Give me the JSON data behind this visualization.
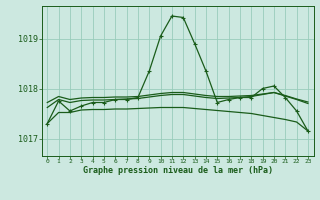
{
  "background_color": "#cce8e0",
  "grid_color": "#99ccbb",
  "line_color": "#1a5c1a",
  "title": "Graphe pression niveau de la mer (hPa)",
  "xlabel_hours": [
    0,
    1,
    2,
    3,
    4,
    5,
    6,
    7,
    8,
    9,
    10,
    11,
    12,
    13,
    14,
    15,
    16,
    17,
    18,
    19,
    20,
    21,
    22,
    23
  ],
  "yticks": [
    1017,
    1018,
    1019
  ],
  "ylim": [
    1016.65,
    1019.65
  ],
  "xlim": [
    -0.5,
    23.5
  ],
  "lines": [
    {
      "x": [
        0,
        1,
        2,
        3,
        4,
        5,
        6,
        7,
        8,
        9,
        10,
        11,
        12,
        13,
        14,
        15,
        16,
        17,
        18,
        19,
        20,
        21,
        22,
        23
      ],
      "y": [
        1017.3,
        1017.75,
        1017.55,
        1017.65,
        1017.72,
        1017.72,
        1017.78,
        1017.78,
        1017.82,
        1018.35,
        1019.05,
        1019.45,
        1019.42,
        1018.9,
        1018.35,
        1017.72,
        1017.78,
        1017.82,
        1017.82,
        1018.0,
        1018.05,
        1017.82,
        1017.55,
        1017.15
      ],
      "marker": "+"
    },
    {
      "x": [
        0,
        1,
        2,
        3,
        4,
        5,
        6,
        7,
        8,
        9,
        10,
        11,
        12,
        13,
        14,
        15,
        16,
        17,
        18,
        19,
        20,
        21,
        22,
        23
      ],
      "y": [
        1017.62,
        1017.78,
        1017.72,
        1017.76,
        1017.77,
        1017.77,
        1017.78,
        1017.79,
        1017.8,
        1017.83,
        1017.86,
        1017.88,
        1017.88,
        1017.85,
        1017.82,
        1017.8,
        1017.81,
        1017.82,
        1017.84,
        1017.88,
        1017.92,
        1017.85,
        1017.78,
        1017.7
      ],
      "marker": null
    },
    {
      "x": [
        0,
        1,
        2,
        3,
        4,
        5,
        6,
        7,
        8,
        9,
        10,
        11,
        12,
        13,
        14,
        15,
        16,
        17,
        18,
        19,
        20,
        21,
        22,
        23
      ],
      "y": [
        1017.72,
        1017.84,
        1017.78,
        1017.81,
        1017.82,
        1017.82,
        1017.83,
        1017.83,
        1017.84,
        1017.87,
        1017.9,
        1017.92,
        1017.92,
        1017.89,
        1017.86,
        1017.84,
        1017.84,
        1017.85,
        1017.86,
        1017.89,
        1017.92,
        1017.86,
        1017.79,
        1017.73
      ],
      "marker": null
    },
    {
      "x": [
        0,
        1,
        2,
        3,
        4,
        5,
        6,
        7,
        8,
        9,
        10,
        11,
        12,
        13,
        14,
        15,
        16,
        17,
        18,
        19,
        20,
        21,
        22,
        23
      ],
      "y": [
        1017.3,
        1017.52,
        1017.52,
        1017.57,
        1017.58,
        1017.58,
        1017.59,
        1017.59,
        1017.6,
        1017.61,
        1017.62,
        1017.62,
        1017.62,
        1017.6,
        1017.58,
        1017.56,
        1017.54,
        1017.52,
        1017.5,
        1017.46,
        1017.42,
        1017.38,
        1017.33,
        1017.15
      ],
      "marker": null
    }
  ]
}
